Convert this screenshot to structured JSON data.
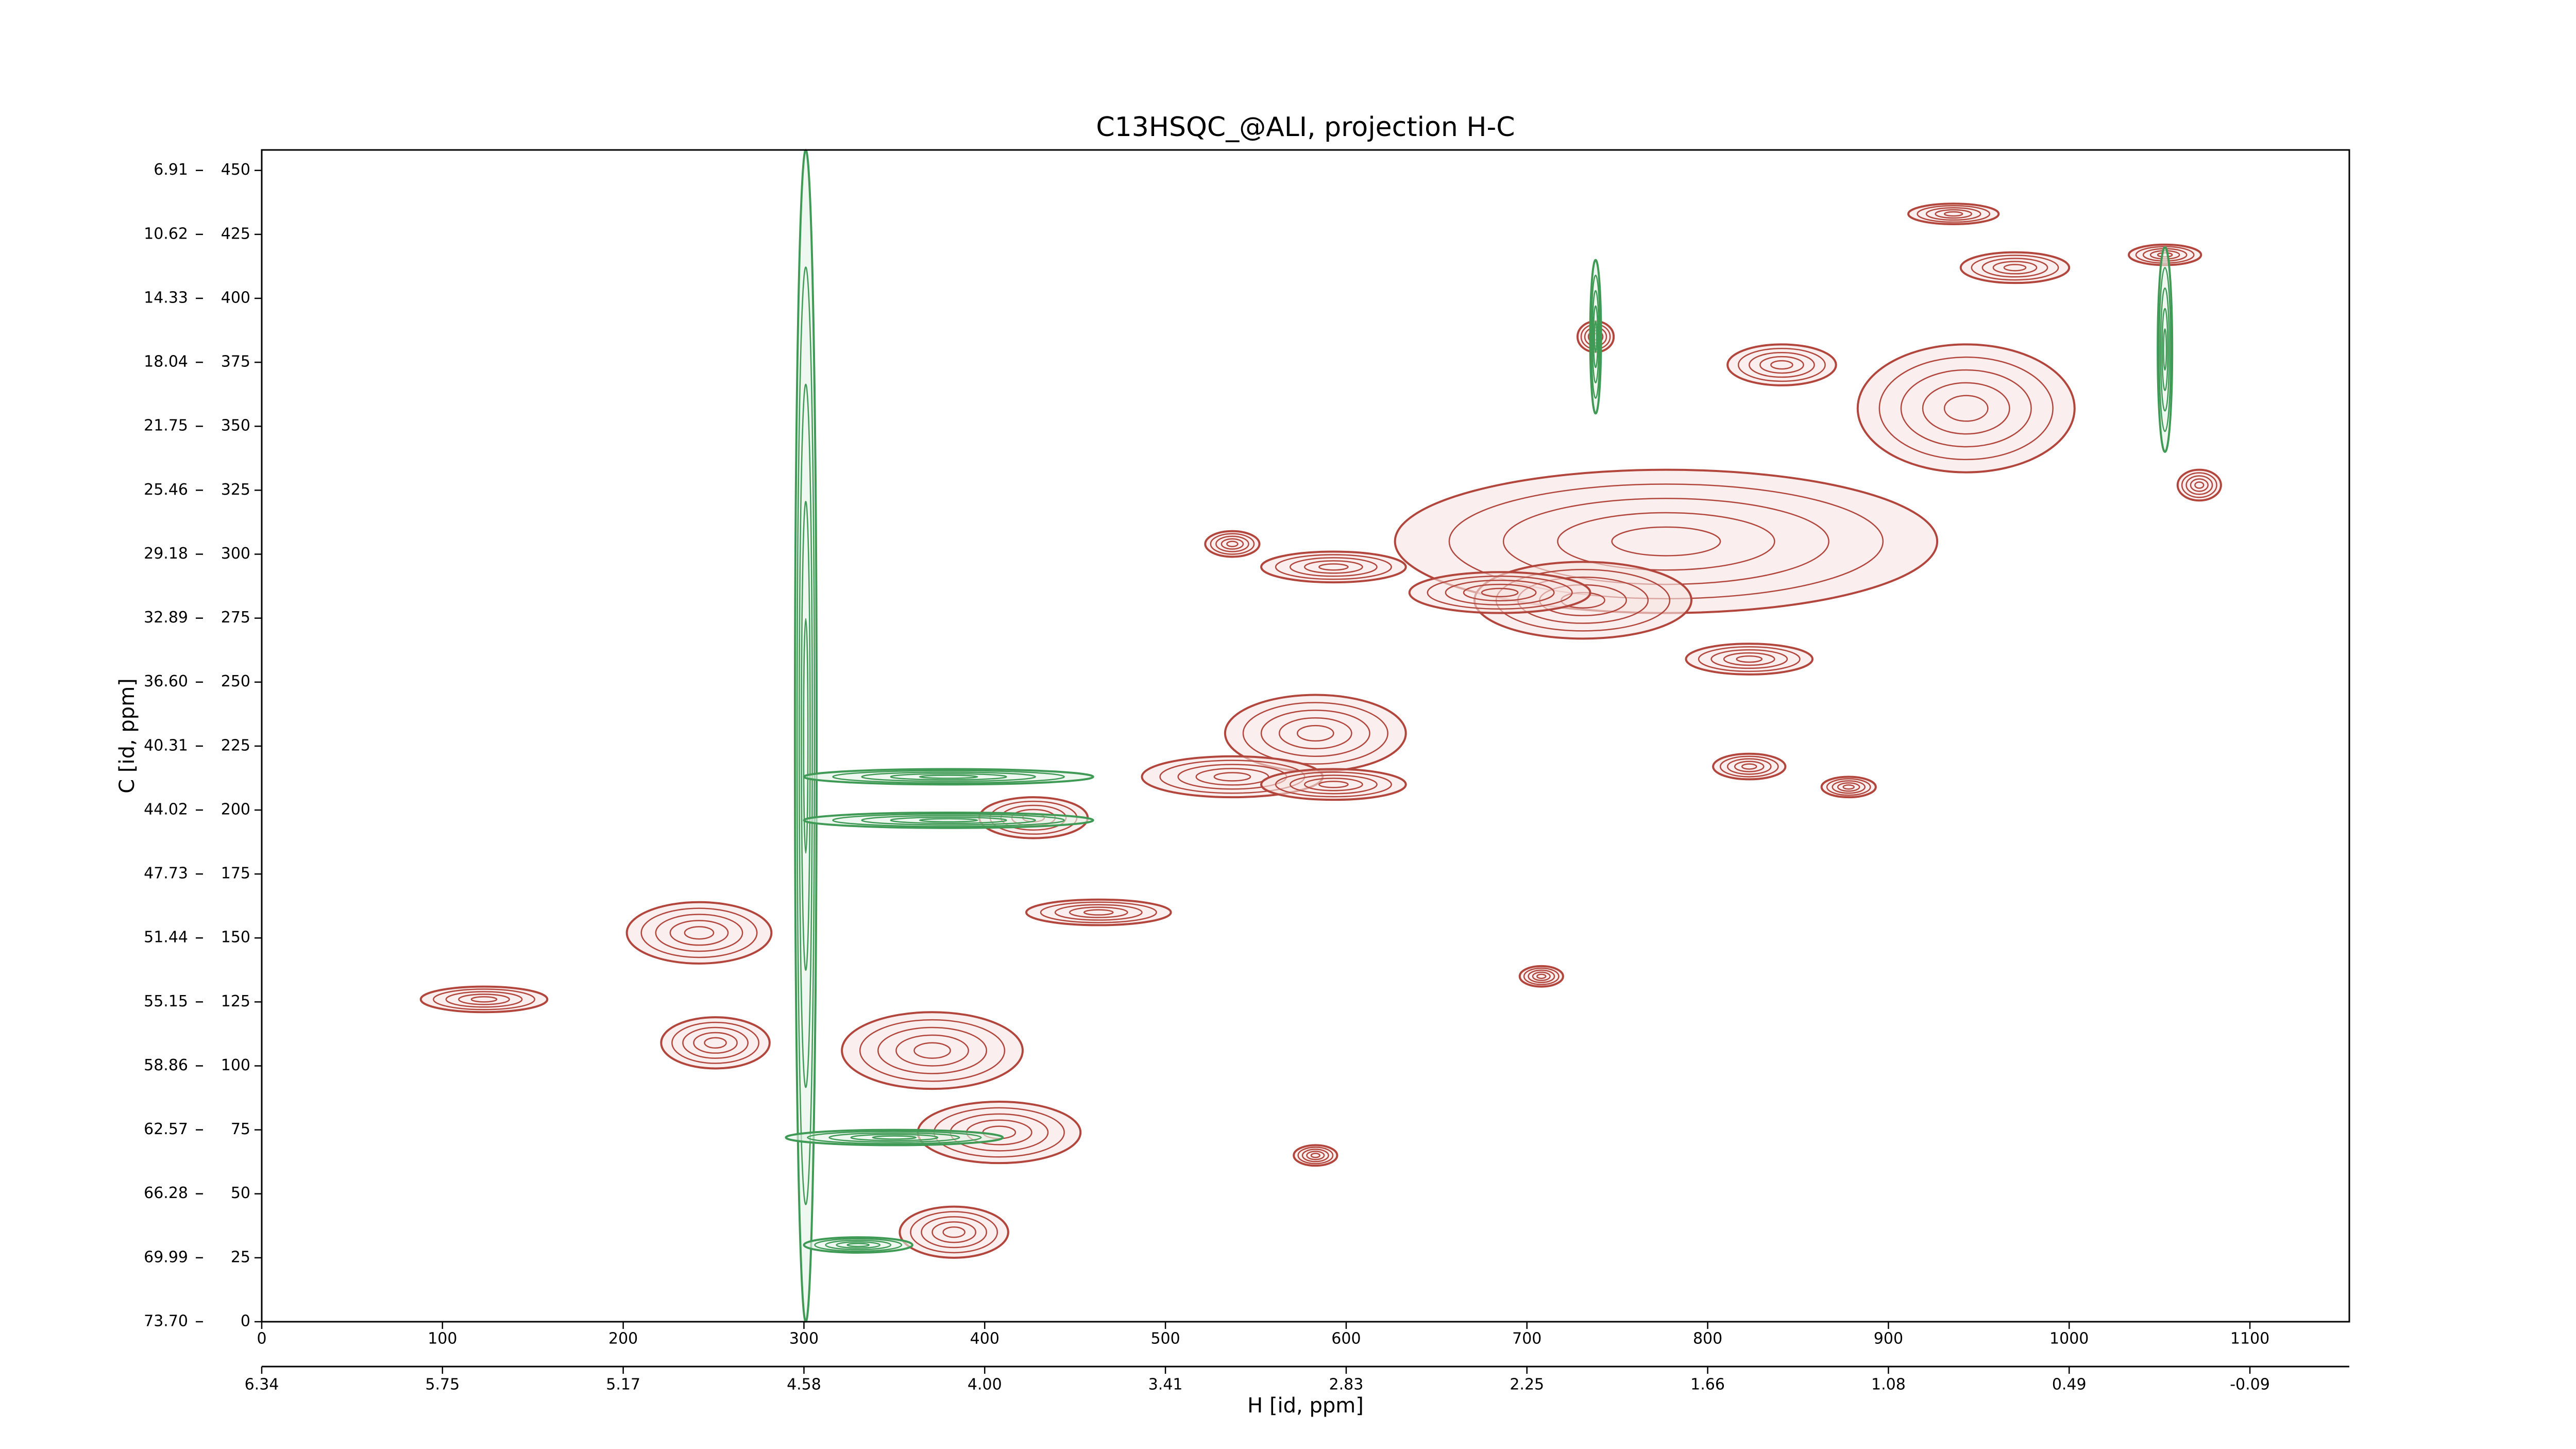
{
  "chart_data": {
    "type": "contour",
    "title": "C13HSQC_@ALI, projection H-C",
    "xlabel": "H [id, ppm]",
    "ylabel": "C [id, ppm]",
    "xlim": [
      0,
      1155
    ],
    "ylim": [
      0,
      458
    ],
    "xticks": [
      0,
      100,
      200,
      300,
      400,
      500,
      600,
      700,
      800,
      900,
      1000,
      1100
    ],
    "yticks": [
      0,
      25,
      50,
      75,
      100,
      125,
      150,
      175,
      200,
      225,
      250,
      275,
      300,
      325,
      350,
      375,
      400,
      425,
      450
    ],
    "x2ticks": [
      {
        "value": 0,
        "label": "6.34"
      },
      {
        "value": 100,
        "label": "5.75"
      },
      {
        "value": 200,
        "label": "5.17"
      },
      {
        "value": 300,
        "label": "4.58"
      },
      {
        "value": 400,
        "label": "4.00"
      },
      {
        "value": 500,
        "label": "3.41"
      },
      {
        "value": 600,
        "label": "2.83"
      },
      {
        "value": 700,
        "label": "2.25"
      },
      {
        "value": 800,
        "label": "1.66"
      },
      {
        "value": 900,
        "label": "1.08"
      },
      {
        "value": 1000,
        "label": "0.49"
      },
      {
        "value": 1100,
        "label": "-0.09"
      }
    ],
    "y2ticks": [
      {
        "value": 0,
        "label": "73.70"
      },
      {
        "value": 25,
        "label": "69.99"
      },
      {
        "value": 50,
        "label": "66.28"
      },
      {
        "value": 75,
        "label": "62.57"
      },
      {
        "value": 100,
        "label": "58.86"
      },
      {
        "value": 125,
        "label": "55.15"
      },
      {
        "value": 150,
        "label": "51.44"
      },
      {
        "value": 175,
        "label": "47.73"
      },
      {
        "value": 200,
        "label": "44.02"
      },
      {
        "value": 225,
        "label": "40.31"
      },
      {
        "value": 250,
        "label": "36.60"
      },
      {
        "value": 275,
        "label": "32.89"
      },
      {
        "value": 300,
        "label": "29.18"
      },
      {
        "value": 325,
        "label": "25.46"
      },
      {
        "value": 350,
        "label": "21.75"
      },
      {
        "value": 375,
        "label": "18.04"
      },
      {
        "value": 400,
        "label": "14.33"
      },
      {
        "value": 425,
        "label": "10.62"
      },
      {
        "value": 450,
        "label": "6.91"
      }
    ],
    "series": [
      {
        "color": "#b2463d",
        "x": [
          936,
          970,
          1053,
          738,
          841,
          943,
          1072,
          777,
          731,
          537,
          593,
          685,
          823,
          583,
          537,
          427,
          823,
          878,
          463,
          242,
          123,
          251,
          371,
          408,
          383,
          593,
          708,
          583
        ],
        "y": [
          433,
          412,
          417,
          385,
          374,
          357,
          327,
          305,
          282,
          304,
          295,
          285,
          259,
          230,
          213,
          197,
          217,
          209,
          160,
          152,
          126,
          109,
          106,
          74,
          35,
          210,
          135,
          65
        ],
        "size_x": [
          25,
          30,
          20,
          10,
          30,
          60,
          12,
          150,
          60,
          15,
          40,
          50,
          35,
          50,
          50,
          30,
          20,
          15,
          40,
          40,
          35,
          30,
          50,
          45,
          30,
          40,
          12,
          12
        ],
        "size_y": [
          4,
          6,
          4,
          6,
          8,
          25,
          6,
          28,
          15,
          5,
          6,
          8,
          6,
          15,
          8,
          8,
          5,
          4,
          5,
          12,
          5,
          10,
          15,
          12,
          10,
          6,
          4,
          4
        ]
      },
      {
        "color": "#3f9a55",
        "x": [
          301,
          380,
          380,
          350,
          330,
          738,
          1053
        ],
        "y": [
          229,
          213,
          196,
          72,
          30,
          385,
          380
        ],
        "size_x": [
          6,
          80,
          80,
          60,
          30,
          3,
          4
        ],
        "size_y": [
          229,
          3,
          3,
          3,
          3,
          30,
          40
        ]
      }
    ]
  }
}
